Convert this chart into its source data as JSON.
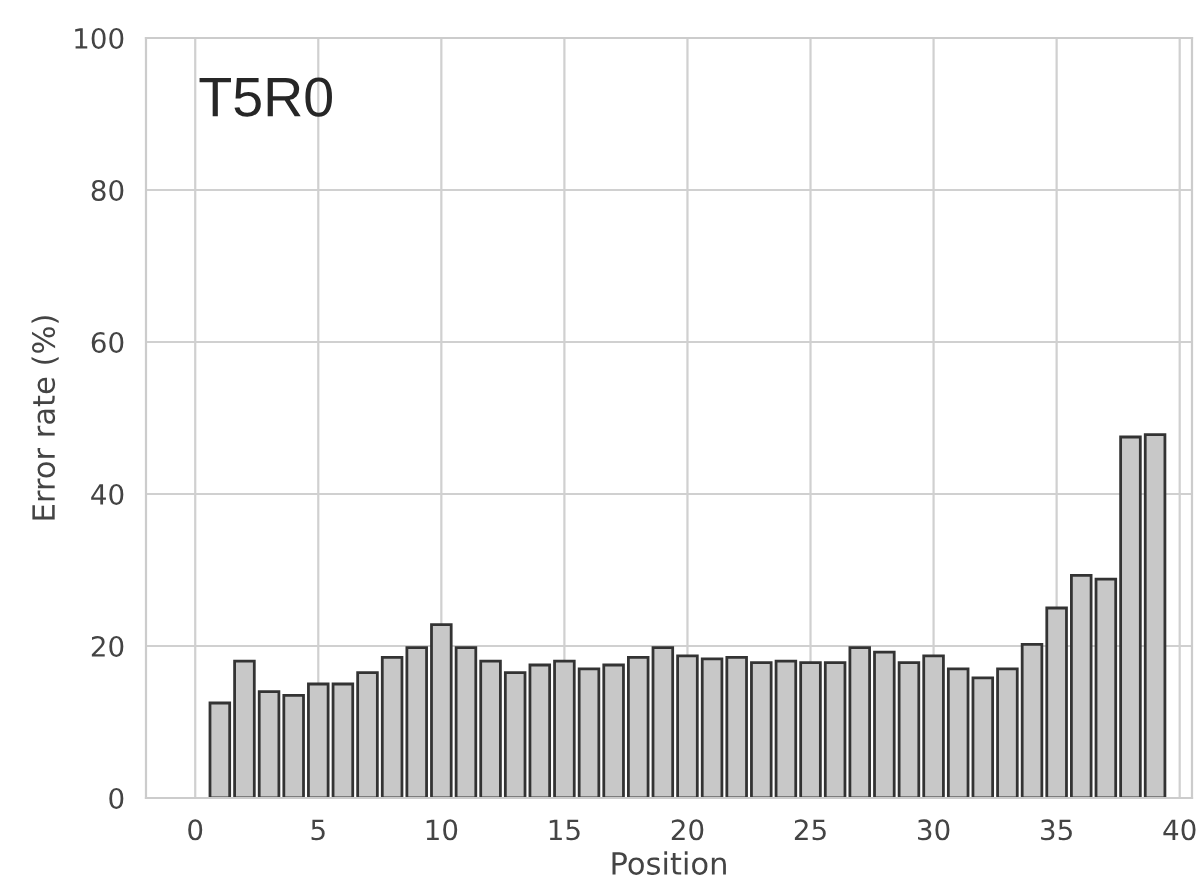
{
  "chart_data": {
    "type": "bar",
    "annotations": [
      "T5R0"
    ],
    "xlabel": "Position",
    "ylabel": "Error rate (%)",
    "x": [
      1,
      2,
      3,
      4,
      5,
      6,
      7,
      8,
      9,
      10,
      11,
      12,
      13,
      14,
      15,
      16,
      17,
      18,
      19,
      20,
      21,
      22,
      23,
      24,
      25,
      26,
      27,
      28,
      29,
      30,
      31,
      32,
      33,
      34,
      35,
      36,
      37,
      38,
      39
    ],
    "values": [
      12.5,
      18,
      14,
      13.5,
      15,
      15,
      16.5,
      18.5,
      19.8,
      22.8,
      19.8,
      18,
      16.5,
      17.5,
      18,
      17,
      17.5,
      18.5,
      19.8,
      18.7,
      18.3,
      18.5,
      17.8,
      18,
      17.8,
      17.8,
      19.8,
      19.2,
      17.8,
      18.7,
      17,
      15.8,
      17,
      20.2,
      25,
      29.3,
      28.8,
      47.5,
      47.8
    ],
    "color": "#c8c8c8",
    "xlim": [
      -2,
      40.5
    ],
    "xticks": [
      0,
      5,
      10,
      15,
      20,
      25,
      30,
      35,
      40
    ],
    "ylim": [
      0,
      100
    ],
    "yticks": [
      0,
      20,
      40,
      60,
      80,
      100
    ],
    "grid": true
  }
}
